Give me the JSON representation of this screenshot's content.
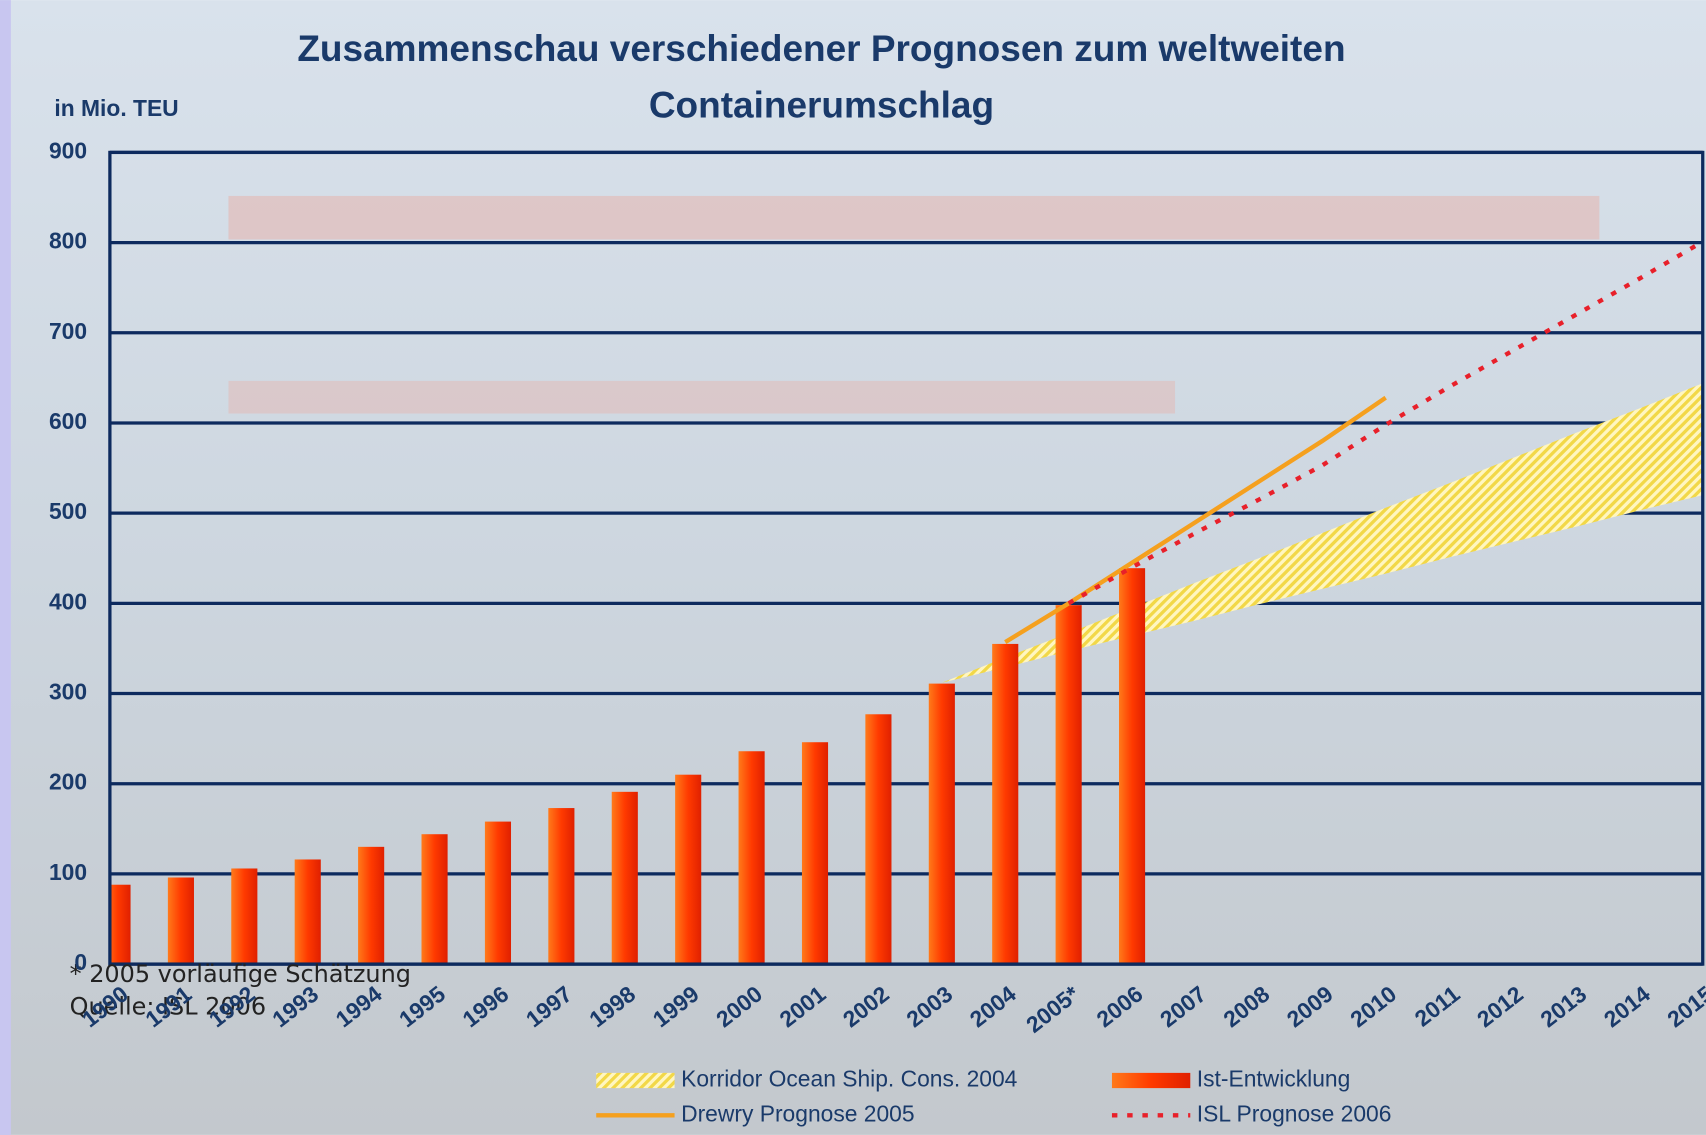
{
  "chart_data": {
    "type": "bar",
    "title": [
      "Zusammenschau verschiedener Prognosen zum weltweiten",
      "Containerumschlag"
    ],
    "y_axis_label": "in Mio. TEU",
    "footnotes": [
      "* 2005 vorläufige Schätzung",
      "Quelle:  ISL 2006"
    ],
    "categories": [
      "1990",
      "1991",
      "1992",
      "1993",
      "1994",
      "1995",
      "1996",
      "1997",
      "1998",
      "1999",
      "2000",
      "2001",
      "2002",
      "2003",
      "2004",
      "2005*",
      "2006",
      "2007",
      "2008",
      "2009",
      "2010",
      "2011",
      "2012",
      "2013",
      "2014",
      "2015"
    ],
    "ylim": [
      0,
      900
    ],
    "yticks": [
      0,
      100,
      200,
      300,
      400,
      500,
      600,
      700,
      800,
      900
    ],
    "grid": true,
    "series": [
      {
        "name": "Korridor Ocean Ship. Cons. 2004",
        "color": "#f2d848",
        "type": "band",
        "low": [
          null,
          null,
          null,
          null,
          null,
          null,
          null,
          null,
          null,
          null,
          null,
          null,
          null,
          312,
          329,
          347,
          364,
          381,
          399,
          416,
          433,
          451,
          468,
          485,
          503,
          520
        ],
        "high": [
          null,
          null,
          null,
          null,
          null,
          null,
          null,
          null,
          null,
          null,
          null,
          null,
          null,
          312,
          340,
          367,
          395,
          423,
          450,
          478,
          506,
          533,
          561,
          589,
          616,
          644
        ]
      },
      {
        "name": "Ist-Entwicklung",
        "color": "#ff3a00",
        "type": "bar",
        "values": [
          88,
          96,
          106,
          116,
          130,
          144,
          158,
          173,
          191,
          210,
          236,
          246,
          277,
          311,
          355,
          398,
          439,
          null,
          null,
          null,
          null,
          null,
          null,
          null,
          null,
          null
        ]
      },
      {
        "name": "Drewry Prognose 2005",
        "color": "#f5a01e",
        "type": "line",
        "values": [
          null,
          null,
          null,
          null,
          null,
          null,
          null,
          null,
          null,
          null,
          null,
          null,
          null,
          null,
          357,
          400,
          445,
          490,
          535,
          580,
          628,
          null,
          null,
          null,
          null,
          null
        ]
      },
      {
        "name": "ISL Prognose 2006",
        "color": "#e8202a",
        "type": "line",
        "dashed": true,
        "values": [
          null,
          null,
          null,
          null,
          null,
          null,
          null,
          null,
          null,
          null,
          null,
          null,
          null,
          null,
          null,
          400,
          440,
          478,
          515,
          553,
          598,
          640,
          680,
          720,
          760,
          801
        ]
      }
    ]
  }
}
